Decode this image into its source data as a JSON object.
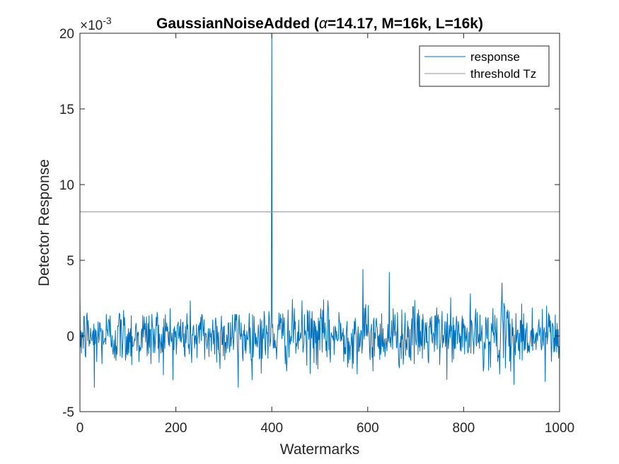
{
  "chart_data": {
    "type": "line",
    "title": "GaussianNoiseAdded (α=14.17, M=16k, L=16k)",
    "title_parts": {
      "prefix": "GaussianNoiseAdded (",
      "symbol": "α",
      "suffix": "=14.17, M=16k, L=16k)"
    },
    "xlabel": "Watermarks",
    "ylabel": "Detector Response",
    "xlim": [
      0,
      1000
    ],
    "ylim": [
      -5,
      20
    ],
    "y_scale_exponent": {
      "base": "×10",
      "exponent": "-3"
    },
    "xticks": [
      0,
      200,
      400,
      600,
      800,
      1000
    ],
    "xtick_labels": [
      "0",
      "200",
      "400",
      "600",
      "800",
      "1000"
    ],
    "yticks": [
      -5,
      0,
      5,
      10,
      15,
      20
    ],
    "ytick_labels": [
      "-5",
      "0",
      "5",
      "10",
      "15",
      "20"
    ],
    "legend_position": "top-right",
    "series": [
      {
        "name": "response",
        "color": "#0072BD",
        "n_points": 1000,
        "noise_sd": 1.0,
        "seed": 12345,
        "x_step": 1,
        "y_unit_note": "values in units of 1e-3",
        "peak": {
          "x": 400,
          "y": 20
        },
        "notable_points": [
          {
            "x": 30,
            "y": -3.4
          },
          {
            "x": 330,
            "y": -3.4
          },
          {
            "x": 590,
            "y": 4.4
          },
          {
            "x": 645,
            "y": 4.2
          },
          {
            "x": 880,
            "y": 3.5
          },
          {
            "x": 905,
            "y": -3.2
          },
          {
            "x": 970,
            "y": -3.0
          }
        ]
      },
      {
        "name": "threshold Tz",
        "color": "#999999",
        "value": 8.2
      }
    ]
  }
}
